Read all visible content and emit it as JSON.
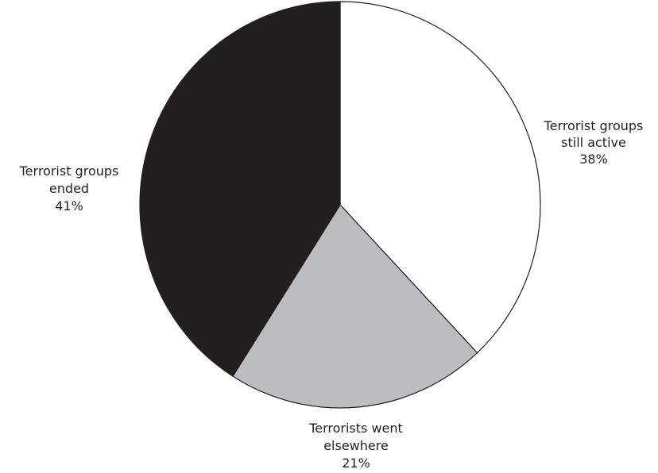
{
  "chart_data": {
    "type": "pie",
    "title": "",
    "start": "top",
    "direction": "clockwise",
    "slices": [
      {
        "label_lines": [
          "Terrorist groups",
          "still active"
        ],
        "value_label": "38%",
        "value": 38,
        "color": "#ffffff"
      },
      {
        "label_lines": [
          "Terrorists went",
          "elsewhere"
        ],
        "value_label": "21%",
        "value": 21,
        "color": "#bcbdc0"
      },
      {
        "label_lines": [
          "Terrorist groups",
          "ended"
        ],
        "value_label": "41%",
        "value": 41,
        "color": "#231f20"
      }
    ]
  }
}
